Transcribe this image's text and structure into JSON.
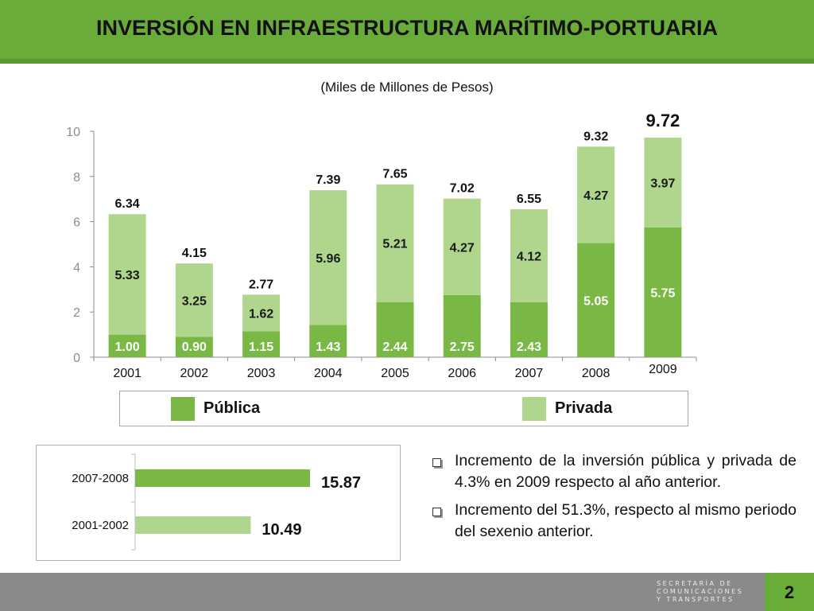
{
  "title": "INVERSIÓN EN INFRAESTRUCTURA MARÍTIMO-PORTUARIA",
  "subtitle": "(Miles de Millones de Pesos)",
  "colors": {
    "header": "#6aac3a",
    "publica": "#79b844",
    "privada": "#afd68c",
    "axis": "#8c8c8c"
  },
  "chart_data": [
    {
      "type": "bar",
      "stacked": true,
      "title": "(Miles de Millones de Pesos)",
      "categories": [
        "2001",
        "2002",
        "2003",
        "2004",
        "2005",
        "2006",
        "2007",
        "2008",
        "2009"
      ],
      "series": [
        {
          "name": "Pública",
          "values": [
            1.0,
            0.9,
            1.15,
            1.43,
            2.44,
            2.75,
            2.43,
            5.05,
            5.75
          ]
        },
        {
          "name": "Privada",
          "values": [
            5.33,
            3.25,
            1.62,
            5.96,
            5.21,
            4.27,
            4.12,
            4.27,
            3.97
          ]
        }
      ],
      "totals": [
        6.34,
        4.15,
        2.77,
        7.39,
        7.65,
        7.02,
        6.55,
        9.32,
        9.72
      ],
      "segment_labels": {
        "publica": [
          "1.00",
          "0.90",
          "1.15",
          "1.43",
          "2.44",
          "2.75",
          "2.43",
          "5.05",
          "5.75"
        ],
        "privada": [
          "5.33",
          "3.25",
          "1.62",
          "5.96",
          "5.21",
          "4.27",
          "4.12",
          "4.27",
          "3.97"
        ],
        "totals": [
          "6.34",
          "4.15",
          "2.77",
          "7.39",
          "7.65",
          "7.02",
          "6.55",
          "9.32",
          "9.72"
        ]
      },
      "yticks": [
        "0",
        "2",
        "4",
        "6",
        "8",
        "10"
      ],
      "ylim": [
        0,
        10
      ],
      "grid": false,
      "legend": "bottom"
    },
    {
      "type": "bar",
      "orientation": "horizontal",
      "categories": [
        "2007-2008",
        "2001-2002"
      ],
      "values": [
        15.87,
        10.49
      ],
      "value_labels": [
        "15.87",
        "10.49"
      ],
      "xlim": [
        0,
        20
      ]
    }
  ],
  "legend": {
    "publica": "Pública",
    "privada": "Privada"
  },
  "bullets": [
    "Incremento de la inversión pública y privada de 4.3% en 2009 respecto al año anterior.",
    "Incremento del 51.3%, respecto al mismo periodo del sexenio anterior."
  ],
  "footer": {
    "logo_lines": [
      "SECRETARÍA DE",
      "COMUNICACIONES",
      "Y TRANSPORTES"
    ],
    "page_number": "2"
  }
}
